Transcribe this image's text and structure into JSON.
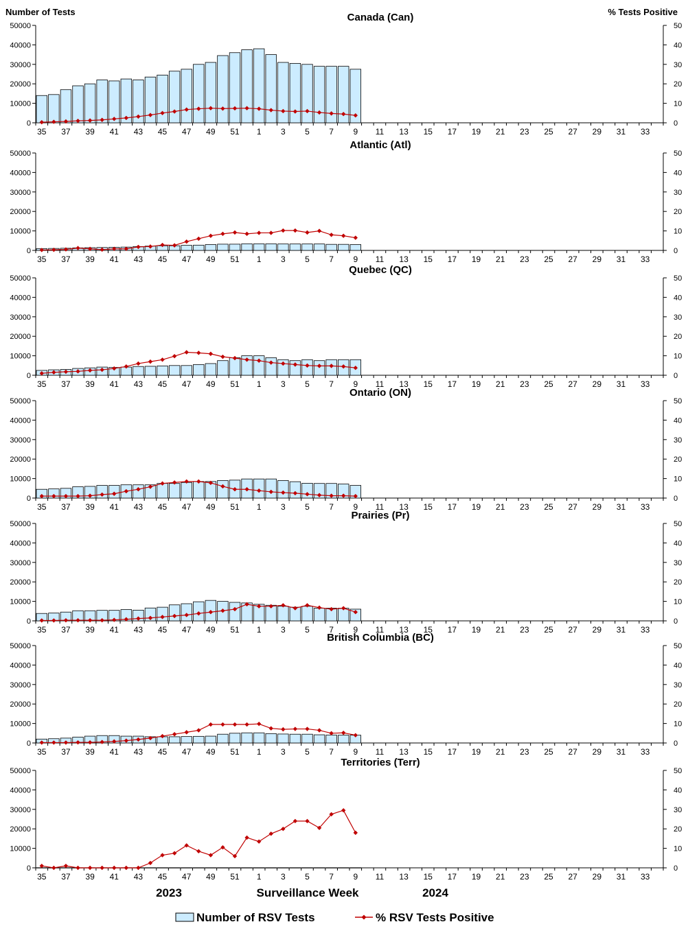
{
  "header": {
    "left_axis_title": "Number of Tests",
    "right_axis_title": "%  Tests Positive"
  },
  "footer": {
    "year_left": "2023",
    "xlabel": "Surveillance Week",
    "year_right": "2024"
  },
  "legend": {
    "bars_label": "Number of RSV Tests",
    "line_label": "% RSV Tests Positive"
  },
  "colors": {
    "bar_fill": "#CCECFF",
    "bar_stroke": "#000000",
    "line": "#C00000"
  },
  "chart_data": {
    "type": "bar",
    "xlabel": "Surveillance Week",
    "left_ylabel": "Number of Tests",
    "right_ylabel": "%  Tests Positive",
    "left_ylim": [
      0,
      50000
    ],
    "right_ylim": [
      0,
      50
    ],
    "left_ticks": [
      "0",
      "10000",
      "20000",
      "30000",
      "40000",
      "50000"
    ],
    "right_ticks": [
      "0",
      "10",
      "20",
      "30",
      "40",
      "50"
    ],
    "weeks": [
      35,
      36,
      37,
      38,
      39,
      40,
      41,
      42,
      43,
      44,
      45,
      46,
      47,
      48,
      49,
      50,
      51,
      52,
      1,
      2,
      3,
      4,
      5,
      6,
      7,
      8,
      9,
      10,
      11,
      12,
      13,
      14,
      15,
      16,
      17,
      18,
      19,
      20,
      21,
      22,
      23,
      24,
      25,
      26,
      27,
      28,
      29,
      30,
      31,
      32,
      33,
      34
    ],
    "week_labels": [
      "35",
      "37",
      "39",
      "41",
      "43",
      "45",
      "47",
      "49",
      "51",
      "1",
      "3",
      "5",
      "7",
      "9",
      "11",
      "13",
      "15",
      "17",
      "19",
      "21",
      "23",
      "25",
      "27",
      "29",
      "31",
      "33"
    ],
    "panels": [
      {
        "title": "Canada (Can)",
        "tests": [
          14000,
          14500,
          17000,
          19000,
          20000,
          22000,
          21500,
          22500,
          22000,
          23500,
          24500,
          26500,
          27500,
          30000,
          31000,
          34500,
          36000,
          37500,
          38000,
          35000,
          31000,
          30500,
          30000,
          29000,
          29000,
          29000,
          27500
        ],
        "percent": [
          0.3,
          0.5,
          0.7,
          1.0,
          1.2,
          1.5,
          2.0,
          2.5,
          3.2,
          4.0,
          5.0,
          5.8,
          6.8,
          7.2,
          7.5,
          7.3,
          7.4,
          7.5,
          7.2,
          6.5,
          6.0,
          5.8,
          6.0,
          5.3,
          4.8,
          4.5,
          3.8
        ]
      },
      {
        "title": "Atlantic (Atl)",
        "tests": [
          900,
          1000,
          1100,
          1300,
          1400,
          1500,
          1600,
          1700,
          2000,
          2200,
          2400,
          2400,
          2600,
          2700,
          3000,
          3200,
          3200,
          3400,
          3400,
          3400,
          3300,
          3300,
          3300,
          3300,
          3100,
          3100,
          3000
        ],
        "percent": [
          0.2,
          0.3,
          0.5,
          1.2,
          0.8,
          0.4,
          0.8,
          0.8,
          1.8,
          2.0,
          2.8,
          2.6,
          4.5,
          6.0,
          7.5,
          8.5,
          9.2,
          8.5,
          9.0,
          9.0,
          10.2,
          10.2,
          9.2,
          10.0,
          8.0,
          7.5,
          6.5
        ]
      },
      {
        "title": "Quebec (QC)",
        "tests": [
          2500,
          2800,
          3000,
          3500,
          3800,
          4200,
          4000,
          4200,
          4500,
          4600,
          4800,
          5000,
          5000,
          5500,
          6000,
          7500,
          9000,
          10000,
          10000,
          9000,
          8000,
          7500,
          8000,
          7500,
          8000,
          8000,
          8000
        ],
        "percent": [
          1.0,
          1.5,
          1.8,
          2.0,
          2.5,
          2.8,
          3.5,
          4.5,
          6.0,
          7.0,
          8.0,
          9.8,
          11.8,
          11.5,
          11.0,
          9.5,
          8.8,
          8.0,
          7.5,
          6.5,
          6.0,
          5.5,
          5.0,
          4.8,
          4.8,
          4.5,
          3.8
        ]
      },
      {
        "title": "Ontario (ON)",
        "tests": [
          4500,
          4700,
          5000,
          5800,
          6000,
          6500,
          6500,
          6800,
          6800,
          6800,
          7500,
          7500,
          8000,
          8500,
          8500,
          9000,
          9200,
          9800,
          9800,
          9800,
          9000,
          8400,
          7600,
          7500,
          7500,
          7200,
          6500
        ],
        "percent": [
          1.0,
          1.0,
          1.0,
          1.0,
          1.2,
          1.8,
          2.2,
          3.5,
          4.5,
          5.8,
          7.5,
          8.0,
          8.5,
          8.5,
          7.8,
          6.0,
          4.5,
          4.5,
          3.8,
          3.2,
          2.8,
          2.5,
          2.0,
          1.5,
          1.2,
          1.2,
          1.0
        ]
      },
      {
        "title": "Prairies (Pr)",
        "tests": [
          3800,
          4000,
          4500,
          5200,
          5200,
          5400,
          5400,
          5800,
          5500,
          6600,
          7000,
          8200,
          8800,
          9800,
          10500,
          10000,
          9500,
          9200,
          8500,
          8000,
          7500,
          7000,
          7500,
          6500,
          6500,
          6500,
          6000
        ],
        "percent": [
          0.2,
          0.2,
          0.3,
          0.3,
          0.3,
          0.3,
          0.5,
          0.8,
          1.2,
          1.5,
          2.0,
          2.5,
          3.0,
          3.8,
          4.5,
          5.2,
          6.0,
          8.5,
          7.5,
          7.5,
          8.0,
          6.5,
          8.0,
          6.8,
          6.0,
          6.5,
          4.5
        ]
      },
      {
        "title": "British Columbia (BC)",
        "tests": [
          2000,
          2200,
          2500,
          3000,
          3500,
          3800,
          3800,
          3500,
          3500,
          3200,
          3200,
          3200,
          3300,
          3400,
          3500,
          4500,
          5000,
          5200,
          5200,
          4800,
          4600,
          4500,
          4500,
          4200,
          4100,
          4000,
          4000
        ],
        "percent": [
          0.2,
          0.2,
          0.2,
          0.3,
          0.3,
          0.5,
          0.8,
          1.2,
          1.8,
          2.5,
          3.5,
          4.5,
          5.5,
          6.5,
          9.5,
          9.5,
          9.5,
          9.5,
          9.8,
          7.5,
          7.0,
          7.2,
          7.2,
          6.5,
          5.0,
          5.2,
          4.0
        ]
      },
      {
        "title": "Territories (Terr)",
        "tests": [
          80,
          80,
          80,
          80,
          80,
          80,
          80,
          80,
          80,
          80,
          80,
          80,
          80,
          80,
          80,
          80,
          80,
          80,
          80,
          80,
          80,
          80,
          80,
          80,
          80,
          80,
          80
        ],
        "percent": [
          1.0,
          0.0,
          1.0,
          0.0,
          0.0,
          0.0,
          0.0,
          0.0,
          0.0,
          2.5,
          6.5,
          7.5,
          11.5,
          8.5,
          6.5,
          10.5,
          6.0,
          15.5,
          13.5,
          17.5,
          20.0,
          24.0,
          24.0,
          20.5,
          27.5,
          29.5,
          18.0
        ]
      }
    ]
  }
}
